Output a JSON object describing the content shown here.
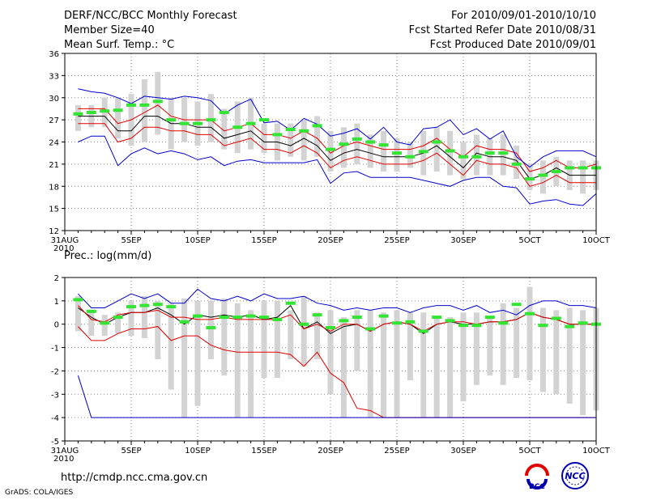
{
  "header": {
    "title": "DERF/NCC/BCC Monthly Forecast",
    "member_size": "Member Size=40",
    "variable": "Mean Surf. Temp.: °C",
    "period": "For 2010/09/01-2010/10/10",
    "started": "Fcst Started Refer Date 2010/08/31",
    "produced": "Fcst Produced Date 2010/09/01"
  },
  "footer": {
    "url": "http://cmdp.ncc.cma.gov.cn",
    "grads_credit": "GrADS: COLA/IGES",
    "logo_bcc": "BCC",
    "logo_ncc": "NCC"
  },
  "colors": {
    "bar": "#d3d3d3",
    "green": "#33e533",
    "red": "#e00000",
    "blue": "#0000cc",
    "black": "#000000",
    "grid": "#888888"
  },
  "chart_data": [
    {
      "type": "line",
      "title": "Mean Surf. Temp.: °C",
      "ylim": [
        12,
        36
      ],
      "yticks": [
        12,
        15,
        18,
        21,
        24,
        27,
        30,
        33,
        36
      ],
      "xlim": [
        0,
        40
      ],
      "xtick_positions": [
        0,
        5,
        10,
        15,
        20,
        25,
        30,
        35,
        40
      ],
      "xtick_labels": [
        "31AUG",
        "5SEP",
        "10SEP",
        "15SEP",
        "20SEP",
        "25SEP",
        "30SEP",
        "5OCT",
        "10OCT"
      ],
      "x_year_label": "2010",
      "x": [
        1,
        2,
        3,
        4,
        5,
        6,
        7,
        8,
        9,
        10,
        11,
        12,
        13,
        14,
        15,
        16,
        17,
        18,
        19,
        20,
        21,
        22,
        23,
        24,
        25,
        26,
        27,
        28,
        29,
        30,
        31,
        32,
        33,
        34,
        35,
        36,
        37,
        38,
        39,
        40
      ],
      "bars_min": [
        25.5,
        26.0,
        26.0,
        24.5,
        23.5,
        24.0,
        25.0,
        23.0,
        24.0,
        23.5,
        24.0,
        23.0,
        22.5,
        23.0,
        22.5,
        21.5,
        22.0,
        21.5,
        22.0,
        20.0,
        20.5,
        21.0,
        20.5,
        20.0,
        20.0,
        20.5,
        19.5,
        20.0,
        19.5,
        19.0,
        19.5,
        19.5,
        19.5,
        19.0,
        17.5,
        17.0,
        18.0,
        17.5,
        17.0,
        17.5
      ],
      "bars_max": [
        29.0,
        29.0,
        30.0,
        30.0,
        30.5,
        32.5,
        33.5,
        30.0,
        30.0,
        29.5,
        30.5,
        28.5,
        29.5,
        30.0,
        26.5,
        26.5,
        26.5,
        27.0,
        27.5,
        25.5,
        26.0,
        26.5,
        25.0,
        25.5,
        24.5,
        24.0,
        25.5,
        26.0,
        25.5,
        24.0,
        25.0,
        24.5,
        25.0,
        23.5,
        21.0,
        21.5,
        22.0,
        21.5,
        21.5,
        21.5
      ],
      "series": [
        {
          "name": "observed",
          "color": "#33e533",
          "values": [
            27.8,
            28.0,
            28.2,
            28.3,
            29.0,
            29.0,
            29.5,
            27.0,
            26.5,
            26.5,
            27.0,
            28.0,
            26.0,
            26.5,
            27.0,
            25.0,
            25.7,
            25.5,
            26.2,
            23.0,
            23.7,
            24.4,
            24.0,
            23.6,
            22.5,
            22.0,
            22.7,
            24.0,
            22.8,
            22.0,
            22.0,
            22.5,
            22.5,
            21.0,
            19.0,
            19.5,
            20.0,
            20.5,
            20.5,
            20.5
          ]
        },
        {
          "name": "mean",
          "color": "#000000",
          "values": [
            27.5,
            27.5,
            27.5,
            25.5,
            25.5,
            27.5,
            27.5,
            26.5,
            26.5,
            26.0,
            26.0,
            24.5,
            25.0,
            25.5,
            24.0,
            24.0,
            23.5,
            24.5,
            23.5,
            21.5,
            22.5,
            23.0,
            22.5,
            22.0,
            22.0,
            22.0,
            22.5,
            23.5,
            22.0,
            20.5,
            22.5,
            22.0,
            22.0,
            21.5,
            19.0,
            19.5,
            20.5,
            19.5,
            19.5,
            19.5
          ]
        },
        {
          "name": "upper",
          "color": "#e00000",
          "values": [
            28.5,
            28.5,
            28.5,
            26.5,
            27.0,
            28.0,
            29.0,
            27.5,
            27.0,
            27.0,
            27.0,
            25.5,
            26.0,
            26.5,
            25.0,
            25.0,
            24.5,
            25.5,
            24.5,
            22.5,
            23.5,
            24.0,
            23.5,
            23.0,
            23.0,
            23.0,
            23.5,
            24.5,
            23.0,
            22.0,
            23.5,
            23.0,
            23.0,
            22.5,
            20.0,
            20.5,
            21.5,
            20.5,
            20.5,
            21.0
          ]
        },
        {
          "name": "lower",
          "color": "#e00000",
          "values": [
            26.5,
            26.5,
            26.5,
            24.0,
            24.5,
            26.0,
            26.0,
            25.5,
            25.5,
            25.0,
            25.0,
            23.5,
            24.0,
            24.5,
            23.0,
            23.0,
            22.5,
            23.5,
            22.5,
            20.5,
            21.5,
            22.0,
            21.5,
            21.0,
            21.0,
            21.0,
            21.5,
            22.5,
            21.0,
            19.5,
            21.5,
            21.0,
            21.0,
            20.5,
            18.0,
            18.5,
            19.5,
            18.5,
            18.5,
            18.5
          ]
        },
        {
          "name": "max",
          "color": "#0000cc",
          "values": [
            31.2,
            30.8,
            30.6,
            30.0,
            29.2,
            30.2,
            30.0,
            29.8,
            30.2,
            30.0,
            29.6,
            27.8,
            29.0,
            29.8,
            26.6,
            26.8,
            25.6,
            27.2,
            26.4,
            24.8,
            25.2,
            25.8,
            24.4,
            26.0,
            24.0,
            23.6,
            25.8,
            26.0,
            27.0,
            25.0,
            25.8,
            24.4,
            25.5,
            22.0,
            20.6,
            22.0,
            22.8,
            22.8,
            22.8,
            22.0
          ]
        },
        {
          "name": "min",
          "color": "#0000cc",
          "values": [
            24.0,
            24.8,
            24.8,
            20.8,
            22.4,
            23.2,
            22.4,
            22.8,
            22.4,
            21.6,
            22.0,
            20.8,
            21.4,
            21.6,
            21.2,
            21.2,
            21.2,
            21.2,
            21.6,
            18.4,
            19.8,
            20.0,
            19.2,
            19.2,
            19.2,
            19.2,
            18.8,
            18.4,
            18.0,
            18.8,
            19.2,
            19.2,
            18.0,
            17.8,
            15.6,
            16.0,
            16.2,
            15.6,
            15.4,
            17.0
          ]
        }
      ]
    },
    {
      "type": "line",
      "title": "Prec.: log(mm/d)",
      "ylim": [
        -5,
        2
      ],
      "yticks": [
        -5,
        -4,
        -3,
        -2,
        -1,
        0,
        1,
        2
      ],
      "xlim": [
        0,
        40
      ],
      "xtick_positions": [
        0,
        5,
        10,
        15,
        20,
        25,
        30,
        35,
        40
      ],
      "xtick_labels": [
        "31AUG",
        "5SEP",
        "10SEP",
        "15SEP",
        "20SEP",
        "25SEP",
        "30SEP",
        "5OCT",
        "10OCT"
      ],
      "x_year_label": "2010",
      "x": [
        1,
        2,
        3,
        4,
        5,
        6,
        7,
        8,
        9,
        10,
        11,
        12,
        13,
        14,
        15,
        16,
        17,
        18,
        19,
        20,
        21,
        22,
        23,
        24,
        25,
        26,
        27,
        28,
        29,
        30,
        31,
        32,
        33,
        34,
        35,
        36,
        37,
        38,
        39,
        40
      ],
      "bars_min": [
        -0.3,
        -0.5,
        -0.5,
        -0.4,
        -0.5,
        -0.6,
        -1.5,
        -2.8,
        -4.0,
        -3.5,
        -1.5,
        -2.2,
        -4.0,
        -4.0,
        -2.3,
        -2.3,
        -1.5,
        -1.8,
        -1.5,
        -3.0,
        -4.0,
        -2.0,
        -4.0,
        -4.0,
        -4.0,
        -2.4,
        -4.0,
        -4.0,
        -4.0,
        -3.3,
        -2.6,
        -2.2,
        -2.6,
        -2.3,
        -2.4,
        -2.9,
        -3.0,
        -3.4,
        -3.9,
        -3.7
      ],
      "bars_max": [
        1.2,
        0.6,
        0.4,
        0.5,
        1.0,
        1.2,
        1.0,
        0.9,
        1.1,
        1.0,
        1.0,
        1.1,
        0.9,
        0.6,
        1.0,
        1.0,
        0.6,
        1.2,
        0.5,
        0.6,
        0.3,
        0.6,
        0.6,
        0.5,
        0.6,
        0.5,
        0.5,
        0.3,
        0.3,
        0.5,
        0.5,
        0.3,
        0.9,
        0.7,
        1.6,
        0.7,
        0.6,
        0.7,
        0.6,
        0.7
      ],
      "series": [
        {
          "name": "observed",
          "color": "#33e533",
          "values": [
            1.05,
            0.55,
            0.05,
            0.3,
            0.75,
            0.8,
            0.85,
            0.75,
            0.1,
            0.35,
            -0.15,
            0.3,
            0.3,
            0.35,
            0.3,
            0.2,
            0.9,
            0.0,
            0.4,
            -0.15,
            0.15,
            0.3,
            -0.2,
            0.35,
            0.05,
            0.1,
            -0.3,
            0.3,
            0.15,
            -0.05,
            -0.05,
            0.3,
            0.05,
            0.85,
            0.45,
            -0.05,
            0.25,
            -0.1,
            0.05,
            0.0
          ]
        },
        {
          "name": "mean",
          "color": "#000000",
          "values": [
            0.7,
            0.3,
            0.0,
            0.3,
            0.5,
            0.5,
            0.7,
            0.4,
            0.0,
            0.4,
            0.3,
            0.4,
            0.3,
            0.4,
            0.2,
            0.3,
            0.8,
            -0.2,
            0.1,
            -0.4,
            -0.1,
            0.0,
            -0.3,
            0.0,
            0.1,
            0.0,
            -0.4,
            0.0,
            0.1,
            0.0,
            0.0,
            0.1,
            0.1,
            0.2,
            0.5,
            0.3,
            0.2,
            0.0,
            0.0,
            0.0
          ]
        },
        {
          "name": "upper",
          "color": "#e00000",
          "values": [
            0.8,
            0.2,
            0.1,
            0.4,
            0.5,
            0.5,
            0.6,
            0.3,
            0.3,
            0.2,
            0.2,
            0.3,
            0.2,
            0.2,
            0.2,
            0.2,
            0.4,
            -0.2,
            0.0,
            -0.3,
            0.0,
            0.0,
            -0.3,
            0.0,
            0.1,
            0.0,
            -0.3,
            0.0,
            0.1,
            0.1,
            0.0,
            0.1,
            0.1,
            0.2,
            0.5,
            0.3,
            0.2,
            0.0,
            0.0,
            0.0
          ]
        },
        {
          "name": "lower",
          "color": "#e00000",
          "values": [
            -0.1,
            -0.7,
            -0.7,
            -0.4,
            -0.2,
            -0.2,
            -0.1,
            -0.7,
            -0.5,
            -0.5,
            -0.9,
            -1.1,
            -1.2,
            -1.2,
            -1.2,
            -1.2,
            -1.3,
            -1.8,
            -1.2,
            -2.1,
            -2.5,
            -3.6,
            -3.7,
            -4.0,
            -4.0,
            -4.0,
            -4.0,
            -4.0,
            -4.0,
            -4.0,
            -4.0,
            -4.0,
            -4.0,
            -4.0,
            -4.0,
            -4.0,
            -4.0,
            -4.0,
            -4.0,
            -4.0
          ]
        },
        {
          "name": "max",
          "color": "#0000cc",
          "values": [
            1.3,
            0.7,
            0.7,
            1.0,
            1.3,
            1.1,
            1.3,
            0.9,
            0.9,
            1.5,
            1.1,
            1.0,
            1.2,
            1.0,
            1.3,
            1.1,
            1.1,
            1.2,
            0.9,
            0.8,
            0.6,
            0.7,
            0.6,
            0.7,
            0.7,
            0.5,
            0.7,
            0.8,
            0.8,
            0.6,
            0.8,
            0.5,
            0.6,
            0.4,
            0.8,
            1.0,
            1.0,
            0.8,
            0.8,
            0.7
          ]
        },
        {
          "name": "min",
          "color": "#0000cc",
          "values": [
            -2.2,
            -4.0,
            -4.0,
            -4.0,
            -4.0,
            -4.0,
            -4.0,
            -4.0,
            -4.0,
            -4.0,
            -4.0,
            -4.0,
            -4.0,
            -4.0,
            -4.0,
            -4.0,
            -4.0,
            -4.0,
            -4.0,
            -4.0,
            -4.0,
            -4.0,
            -4.0,
            -4.0,
            -4.0,
            -4.0,
            -4.0,
            -4.0,
            -4.0,
            -4.0,
            -4.0,
            -4.0,
            -4.0,
            -4.0,
            -4.0,
            -4.0,
            -4.0,
            -4.0,
            -4.0,
            -4.0
          ]
        }
      ]
    }
  ]
}
